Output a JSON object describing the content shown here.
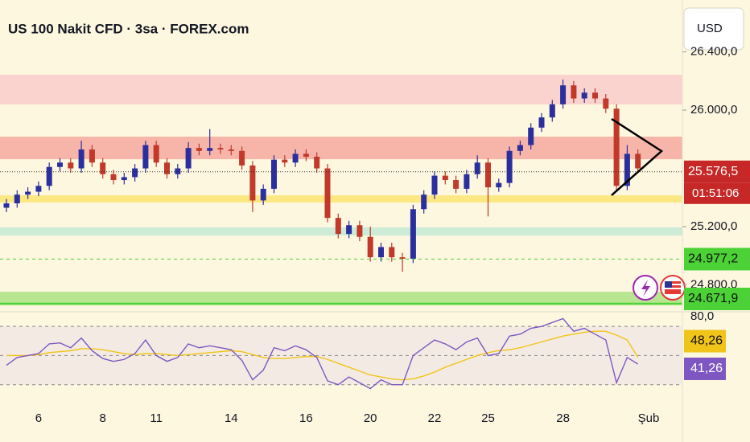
{
  "header": {
    "title": "US 100 Nakit CFD · 3sa · FOREX.com",
    "currency": "USD"
  },
  "chart_data": [
    {
      "type": "candlestick",
      "categories": [
        null,
        null,
        null,
        "6",
        null,
        null,
        null,
        null,
        null,
        "8",
        null,
        null,
        null,
        null,
        "11",
        null,
        null,
        null,
        null,
        null,
        null,
        "14",
        null,
        null,
        null,
        null,
        null,
        null,
        "16",
        null,
        null,
        null,
        null,
        null,
        "20",
        null,
        null,
        null,
        null,
        null,
        "22",
        null,
        null,
        null,
        null,
        "25",
        null,
        null,
        null,
        null,
        null,
        null,
        "28",
        null,
        null,
        null,
        null,
        null,
        null,
        null,
        "Şub"
      ],
      "open": [
        25330,
        25360,
        25420,
        25440,
        25480,
        25610,
        25640,
        25600,
        25730,
        25640,
        25560,
        25520,
        25540,
        25600,
        25760,
        25640,
        25560,
        25600,
        25740,
        25720,
        25740,
        25730,
        25720,
        25620,
        25380,
        25460,
        25660,
        25640,
        25700,
        25680,
        25600,
        25260,
        25150,
        25210,
        25130,
        24990,
        25060,
        24990,
        24980,
        25320,
        25420,
        25550,
        25520,
        25460,
        25560,
        25640,
        25470,
        25500,
        25720,
        25760,
        25880,
        25950,
        26040,
        26170,
        26080,
        26120,
        26080,
        26010,
        25480,
        25700,
        null
      ],
      "high": [
        25390,
        25450,
        25470,
        25510,
        25640,
        25670,
        25670,
        25790,
        25760,
        25670,
        25590,
        25570,
        25630,
        25790,
        25790,
        25670,
        25630,
        25780,
        25770,
        25870,
        25770,
        25760,
        25750,
        25650,
        25490,
        25690,
        25690,
        25730,
        25730,
        25710,
        25630,
        25290,
        25240,
        25240,
        25200,
        25090,
        25090,
        25020,
        25350,
        25450,
        25580,
        25580,
        25550,
        25590,
        25690,
        25670,
        25530,
        25750,
        25790,
        25910,
        25980,
        26070,
        26210,
        26200,
        26150,
        26150,
        26110,
        26040,
        25760,
        25730,
        null
      ],
      "low": [
        25300,
        25330,
        25390,
        25410,
        25450,
        25580,
        25570,
        25570,
        25610,
        25530,
        25490,
        25490,
        25510,
        25570,
        25610,
        25530,
        25530,
        25570,
        25690,
        25690,
        25700,
        25690,
        25590,
        25300,
        25350,
        25430,
        25610,
        25610,
        25650,
        25570,
        25230,
        25120,
        25120,
        25100,
        24960,
        24960,
        24960,
        24890,
        24950,
        25290,
        25390,
        25490,
        25430,
        25430,
        25530,
        25270,
        25440,
        25470,
        25690,
        25730,
        25850,
        25920,
        26010,
        26050,
        26050,
        26050,
        25980,
        25440,
        25450,
        25570,
        null
      ],
      "close": [
        25360,
        25420,
        25440,
        25480,
        25610,
        25640,
        25600,
        25730,
        25640,
        25560,
        25520,
        25540,
        25600,
        25760,
        25640,
        25560,
        25600,
        25740,
        25720,
        25740,
        25730,
        25720,
        25620,
        25380,
        25460,
        25660,
        25640,
        25700,
        25680,
        25600,
        25260,
        25150,
        25210,
        25130,
        24990,
        25060,
        24990,
        24980,
        25320,
        25420,
        25550,
        25520,
        25460,
        25560,
        25640,
        25470,
        25500,
        25720,
        25760,
        25880,
        25950,
        26040,
        26170,
        26080,
        26120,
        26080,
        26010,
        25480,
        25700,
        25600,
        null
      ],
      "up_color": "#2b2f9e",
      "down_color": "#c0392b",
      "ylim": [
        24632,
        26756
      ],
      "yticks": [
        {
          "value": 26400,
          "label": "26.400,0"
        },
        {
          "value": 26000,
          "label": "26.000,0"
        },
        {
          "value": 25200,
          "label": "25.200,0"
        },
        {
          "value": 24800,
          "label": "24.800,0"
        }
      ],
      "zones": [
        {
          "from": 26039,
          "to": 26243,
          "color": "#f9c9c9"
        },
        {
          "from": 25663,
          "to": 25818,
          "color": "#f5a29a"
        },
        {
          "from": 25366,
          "to": 25415,
          "color": "#fbe46a"
        },
        {
          "from": 25139,
          "to": 25195,
          "color": "#bfe8d6"
        },
        {
          "from": 24659,
          "to": 24753,
          "color": "#a6e07c"
        }
      ],
      "price_lines": [
        {
          "value": 25576.5,
          "label": "25.576,5",
          "color": "#c62828"
        },
        {
          "value": 24977.2,
          "label": "24.977,2",
          "color": "#4cd137"
        },
        {
          "value": 24671.9,
          "label": "24.671,9",
          "color": "#4cd137"
        }
      ],
      "countdown": "01:51:06"
    },
    {
      "type": "line",
      "ylim": [
        9,
        95
      ],
      "yticks": [
        {
          "value": 80,
          "label": "80,0"
        }
      ],
      "levels": [
        50,
        20
      ],
      "series": [
        {
          "name": "RSI",
          "color": "#7e57c2",
          "values": [
            40,
            48,
            50,
            52,
            62,
            63,
            58,
            68,
            55,
            47,
            44,
            46,
            52,
            66,
            50,
            44,
            48,
            62,
            58,
            60,
            58,
            56,
            45,
            25,
            35,
            58,
            55,
            60,
            56,
            48,
            24,
            20,
            28,
            22,
            16,
            25,
            20,
            20,
            50,
            58,
            66,
            62,
            56,
            64,
            68,
            50,
            52,
            70,
            72,
            78,
            80,
            84,
            88,
            75,
            78,
            72,
            66,
            22,
            48,
            41.26
          ],
          "value_labels": [
            null,
            null,
            null,
            null,
            null,
            null,
            null,
            null,
            null,
            null,
            null,
            null,
            null,
            null,
            null,
            null,
            null,
            null,
            null,
            null,
            null,
            null,
            null,
            null,
            null,
            null,
            null,
            null,
            null,
            null,
            null,
            null,
            null,
            null,
            null,
            null,
            null,
            null,
            null,
            null,
            null,
            null,
            null,
            null,
            null,
            null,
            null,
            null,
            null,
            null,
            null,
            null,
            null,
            null,
            null,
            null,
            null,
            null,
            null,
            "41,26"
          ]
        },
        {
          "name": "MA",
          "color": "#f0c419",
          "values": [
            50,
            50,
            50,
            51,
            53,
            54,
            55,
            57,
            57,
            56,
            54,
            52,
            51,
            52,
            52,
            51,
            50,
            51,
            52,
            53,
            54,
            55,
            54,
            51,
            48,
            47,
            47,
            48,
            49,
            49,
            46,
            42,
            38,
            34,
            30,
            28,
            26,
            25,
            26,
            29,
            33,
            38,
            42,
            46,
            50,
            53,
            55,
            56,
            58,
            61,
            64,
            67,
            70,
            72,
            74,
            75,
            75,
            71,
            66,
            48.26
          ],
          "value_labels": [
            null,
            null,
            null,
            null,
            null,
            null,
            null,
            null,
            null,
            null,
            null,
            null,
            null,
            null,
            null,
            null,
            null,
            null,
            null,
            null,
            null,
            null,
            null,
            null,
            null,
            null,
            null,
            null,
            null,
            null,
            null,
            null,
            null,
            null,
            null,
            null,
            null,
            null,
            null,
            null,
            null,
            null,
            null,
            null,
            null,
            null,
            null,
            null,
            null,
            null,
            null,
            null,
            null,
            null,
            null,
            null,
            null,
            null,
            null,
            "48,26"
          ]
        }
      ]
    }
  ]
}
